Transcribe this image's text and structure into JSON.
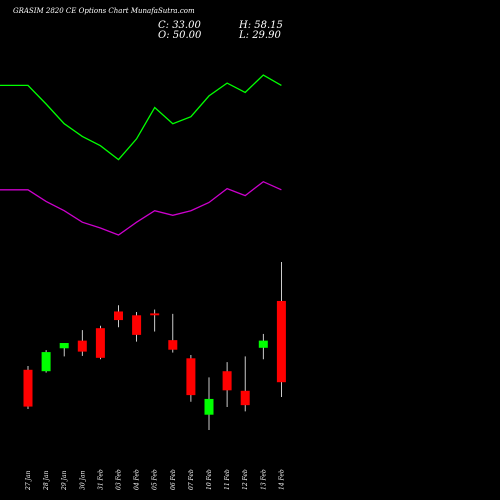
{
  "header": {
    "title": "GRASIM 2820  CE Options  Chart MunafaSutra.com",
    "close": "C: 33.00",
    "open": "O: 50.00",
    "high": "H: 58.15",
    "low": "L: 29.90"
  },
  "colors": {
    "background": "#000000",
    "up": "#00ff00",
    "down": "#ff0000",
    "upper_line": "#00ff00",
    "lower_line": "#cc00cc",
    "text": "#ffffff"
  },
  "chart_data": {
    "type": "candlestick",
    "title": "GRASIM 2820  CE Options  Chart MunafaSutra.com",
    "categories": [
      "27 Jan",
      "28 Jan",
      "29 Jan",
      "30 Jan",
      "31 Feb",
      "03 Feb",
      "04 Feb",
      "05 Feb",
      "06 Feb",
      "07 Feb",
      "10 Feb",
      "11 Feb",
      "12 Feb",
      "13 Feb",
      "14 Feb"
    ],
    "ohlc": [
      {
        "o": 35.6,
        "h": 36.4,
        "l": 27.4,
        "c": 27.9
      },
      {
        "o": 35.3,
        "h": 39.7,
        "l": 35.0,
        "c": 39.3
      },
      {
        "o": 40.1,
        "h": 41.2,
        "l": 38.4,
        "c": 41.2
      },
      {
        "o": 41.7,
        "h": 43.9,
        "l": 38.5,
        "c": 39.4
      },
      {
        "o": 44.3,
        "h": 44.8,
        "l": 37.8,
        "c": 38.1
      },
      {
        "o": 47.8,
        "h": 49.1,
        "l": 44.5,
        "c": 46.0
      },
      {
        "o": 47.0,
        "h": 47.7,
        "l": 41.5,
        "c": 42.9
      },
      {
        "o": 47.4,
        "h": 48.2,
        "l": 43.6,
        "c": 47.0
      },
      {
        "o": 41.8,
        "h": 47.3,
        "l": 39.2,
        "c": 39.8
      },
      {
        "o": 38.0,
        "h": 38.7,
        "l": 28.9,
        "c": 30.3
      },
      {
        "o": 26.2,
        "h": 34.0,
        "l": 23.0,
        "c": 29.5
      },
      {
        "o": 35.3,
        "h": 37.2,
        "l": 27.8,
        "c": 31.3
      },
      {
        "o": 31.2,
        "h": 38.4,
        "l": 26.9,
        "c": 28.2
      },
      {
        "o": 40.2,
        "h": 43.1,
        "l": 37.8,
        "c": 41.7
      },
      {
        "o": 50.0,
        "h": 58.15,
        "l": 29.9,
        "c": 33.0
      }
    ],
    "upper_band": [
      24.7,
      23.1,
      21.4,
      20.3,
      19.5,
      18.3,
      20.1,
      22.8,
      21.4,
      22.0,
      23.8,
      24.9,
      24.1,
      25.6,
      24.7
    ],
    "lower_band": [
      15.7,
      14.7,
      13.9,
      12.9,
      12.4,
      11.8,
      12.9,
      13.9,
      13.5,
      13.9,
      14.6,
      15.8,
      15.2,
      16.4,
      15.7
    ],
    "xlabel": "",
    "ylabel": "",
    "grid": false,
    "legend": "none"
  }
}
